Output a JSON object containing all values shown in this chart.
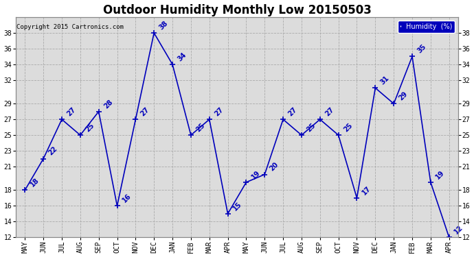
{
  "title": "Outdoor Humidity Monthly Low 20150503",
  "copyright_text": "Copyright 2015 Cartronics.com",
  "legend_label": "Humidity  (%)",
  "months": [
    "MAY",
    "JUN",
    "JUL",
    "AUG",
    "SEP",
    "OCT",
    "NOV",
    "DEC",
    "JAN",
    "FEB",
    "MAR",
    "APR",
    "MAY",
    "JUN",
    "JUL",
    "AUG",
    "SEP",
    "OCT",
    "NOV",
    "DEC",
    "JAN",
    "FEB",
    "MAR",
    "APR"
  ],
  "values": [
    18,
    22,
    27,
    25,
    28,
    16,
    27,
    38,
    34,
    25,
    27,
    15,
    19,
    20,
    27,
    25,
    27,
    25,
    17,
    31,
    29,
    35,
    19,
    12
  ],
  "line_color": "#0000bb",
  "marker": "+",
  "marker_size": 6,
  "line_width": 1.2,
  "ylim": [
    12,
    40
  ],
  "yticks": [
    12,
    14,
    16,
    18,
    21,
    23,
    25,
    27,
    29,
    32,
    34,
    36,
    38
  ],
  "background_color": "#ffffff",
  "plot_bg_color": "#dcdcdc",
  "grid_color": "#aaaaaa",
  "title_fontsize": 12,
  "tick_fontsize": 7,
  "annotation_color": "#0000bb",
  "annotation_fontsize": 7
}
